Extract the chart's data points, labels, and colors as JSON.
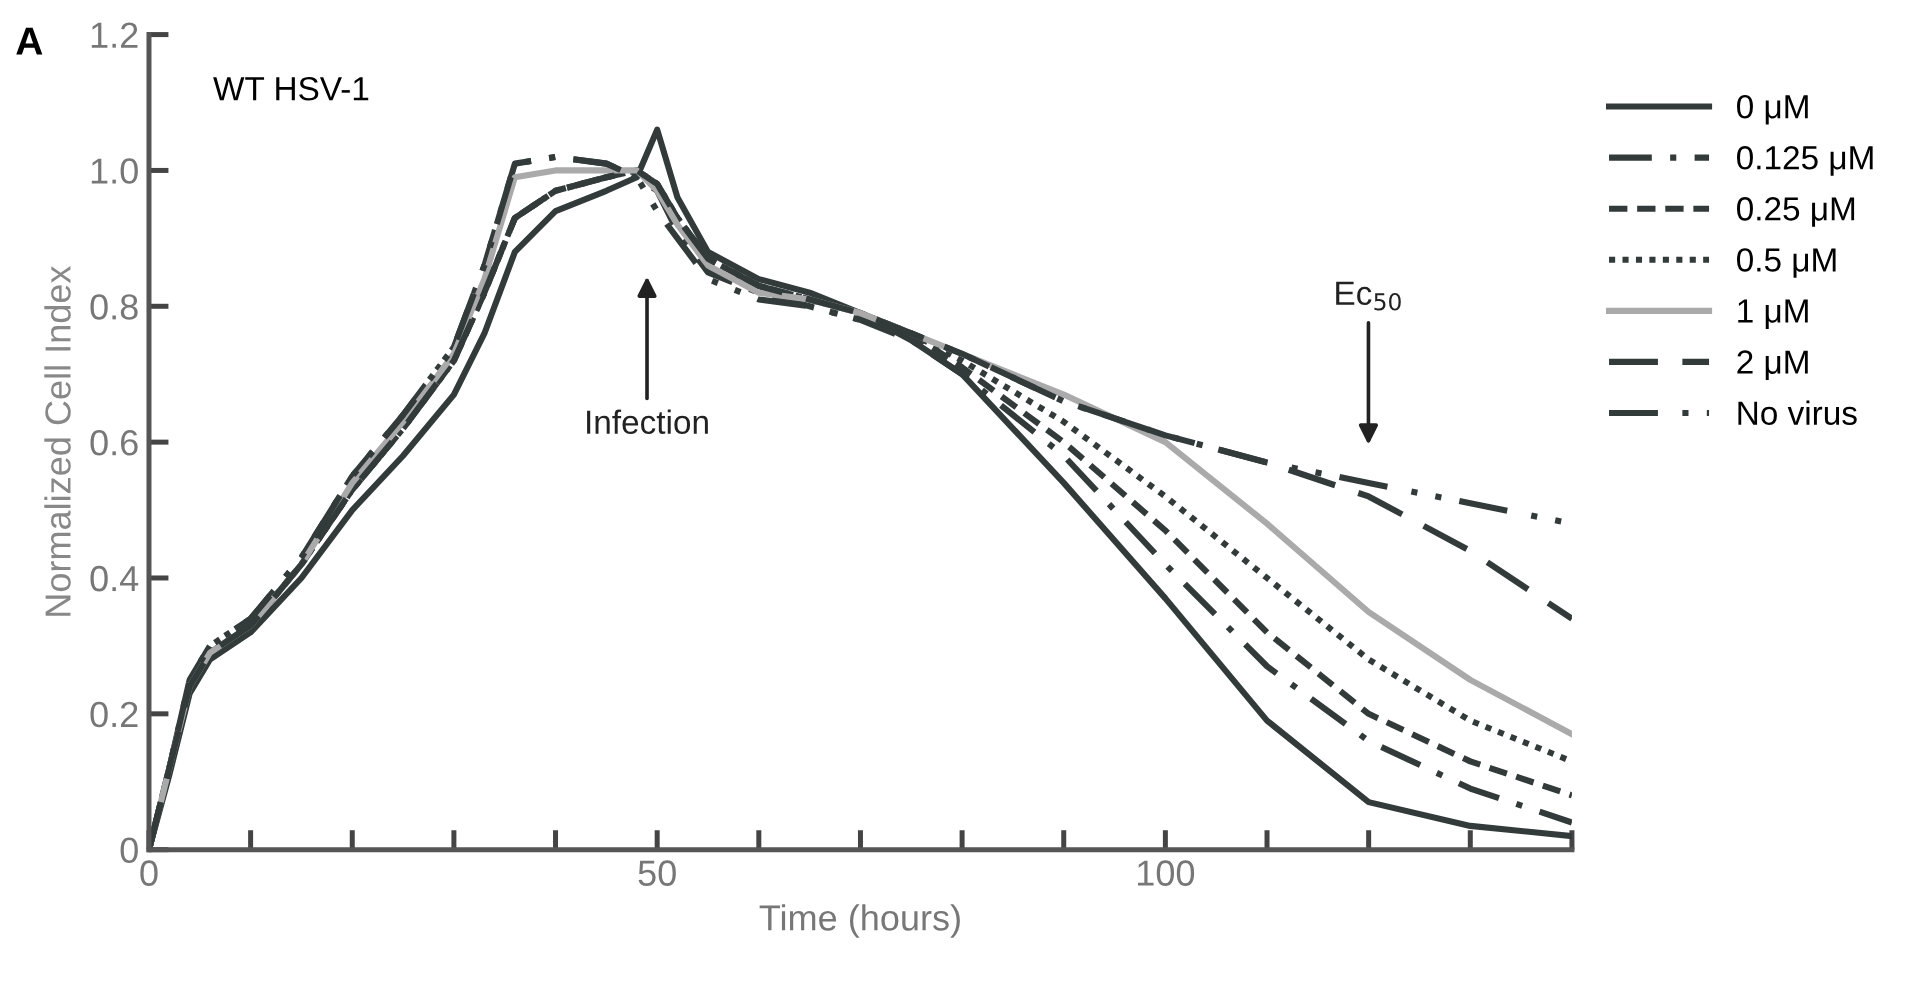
{
  "chart_data": {
    "type": "line",
    "xlabel": "Time (hours)",
    "ylabel": "Normalized Cell Index",
    "x": [
      0,
      2,
      4,
      6,
      10,
      15,
      20,
      25,
      30,
      33,
      36,
      40,
      45,
      48,
      50,
      52,
      55,
      60,
      65,
      70,
      75,
      80,
      90,
      100,
      110,
      120,
      130,
      140
    ],
    "xlim": [
      0,
      140
    ],
    "ylim": [
      0,
      1.2
    ],
    "xticks": [
      0,
      {
        "value": 10,
        "label": null
      },
      {
        "value": 20,
        "label": null
      },
      {
        "value": 30,
        "label": null
      },
      {
        "value": 40,
        "label": null
      },
      50,
      {
        "value": 60,
        "label": null
      },
      {
        "value": 70,
        "label": null
      },
      {
        "value": 80,
        "label": null
      },
      {
        "value": 90,
        "label": null
      },
      100,
      {
        "value": 110,
        "label": null
      },
      {
        "value": 120,
        "label": null
      },
      {
        "value": 130,
        "label": null
      },
      {
        "value": 140,
        "label": null
      }
    ],
    "yticks": [
      0,
      0.2,
      0.4,
      0.6,
      0.8,
      {
        "value": 1,
        "label": "1.0"
      },
      1.2
    ],
    "grid": false,
    "legend": "right",
    "marker": "none",
    "annotations": [
      "A",
      "WT HSV-1",
      "Infection",
      "Ec$_{50}$"
    ],
    "series": [
      {
        "name": "0 μM",
        "color": "#333a3a",
        "line_style": "solid",
        "values": [
          0,
          0.11,
          0.23,
          0.28,
          0.32,
          0.4,
          0.5,
          0.58,
          0.67,
          0.76,
          0.88,
          0.94,
          0.97,
          0.99,
          1.06,
          0.96,
          0.88,
          0.84,
          0.82,
          0.79,
          0.75,
          0.7,
          0.54,
          0.37,
          0.19,
          0.07,
          0.035,
          0.02
        ]
      },
      {
        "name": "0.125 μM",
        "color": "#333a3a",
        "line_style": "dashdot",
        "values": [
          0,
          0.12,
          0.25,
          0.3,
          0.34,
          0.43,
          0.55,
          0.64,
          0.74,
          0.86,
          1.01,
          1.02,
          1.01,
          0.99,
          0.97,
          0.91,
          0.85,
          0.82,
          0.8,
          0.78,
          0.75,
          0.7,
          0.58,
          0.42,
          0.27,
          0.16,
          0.09,
          0.04
        ]
      },
      {
        "name": "0.25 μM",
        "color": "#333a3a",
        "line_style": "dashed",
        "values": [
          0,
          0.12,
          0.24,
          0.29,
          0.33,
          0.42,
          0.53,
          0.62,
          0.72,
          0.82,
          0.93,
          0.97,
          0.99,
          1.0,
          0.98,
          0.93,
          0.87,
          0.83,
          0.81,
          0.79,
          0.76,
          0.71,
          0.6,
          0.47,
          0.32,
          0.2,
          0.13,
          0.08
        ]
      },
      {
        "name": "0.5 μM",
        "color": "#333a3a",
        "line_style": "dotted",
        "values": [
          0,
          0.12,
          0.24,
          0.29,
          0.33,
          0.42,
          0.53,
          0.62,
          0.72,
          0.82,
          0.93,
          0.97,
          0.99,
          1.0,
          0.98,
          0.93,
          0.87,
          0.83,
          0.81,
          0.79,
          0.76,
          0.72,
          0.63,
          0.52,
          0.4,
          0.28,
          0.19,
          0.13
        ]
      },
      {
        "name": "1 μM",
        "color": "#aaaaaa",
        "line_style": "solid",
        "values": [
          0,
          0.12,
          0.24,
          0.29,
          0.33,
          0.42,
          0.54,
          0.63,
          0.73,
          0.84,
          0.99,
          1.0,
          1.0,
          1.0,
          0.97,
          0.92,
          0.86,
          0.82,
          0.81,
          0.79,
          0.76,
          0.73,
          0.67,
          0.6,
          0.48,
          0.35,
          0.25,
          0.17
        ]
      },
      {
        "name": "2 μM",
        "color": "#333a3a",
        "line_style": "longdash",
        "values": [
          0,
          0.12,
          0.24,
          0.29,
          0.33,
          0.42,
          0.53,
          0.62,
          0.72,
          0.82,
          0.93,
          0.97,
          0.99,
          1.0,
          0.98,
          0.93,
          0.87,
          0.83,
          0.81,
          0.79,
          0.76,
          0.73,
          0.66,
          0.61,
          0.57,
          0.52,
          0.44,
          0.34
        ]
      },
      {
        "name": "No virus",
        "color": "#333a3a",
        "line_style": "dashdotdot",
        "values": [
          0,
          0.12,
          0.25,
          0.3,
          0.34,
          0.43,
          0.55,
          0.64,
          0.74,
          0.86,
          1.01,
          1.02,
          1.01,
          0.99,
          0.94,
          0.9,
          0.84,
          0.81,
          0.8,
          0.78,
          0.76,
          0.73,
          0.66,
          0.61,
          0.57,
          0.54,
          0.51,
          0.48
        ]
      }
    ]
  }
}
